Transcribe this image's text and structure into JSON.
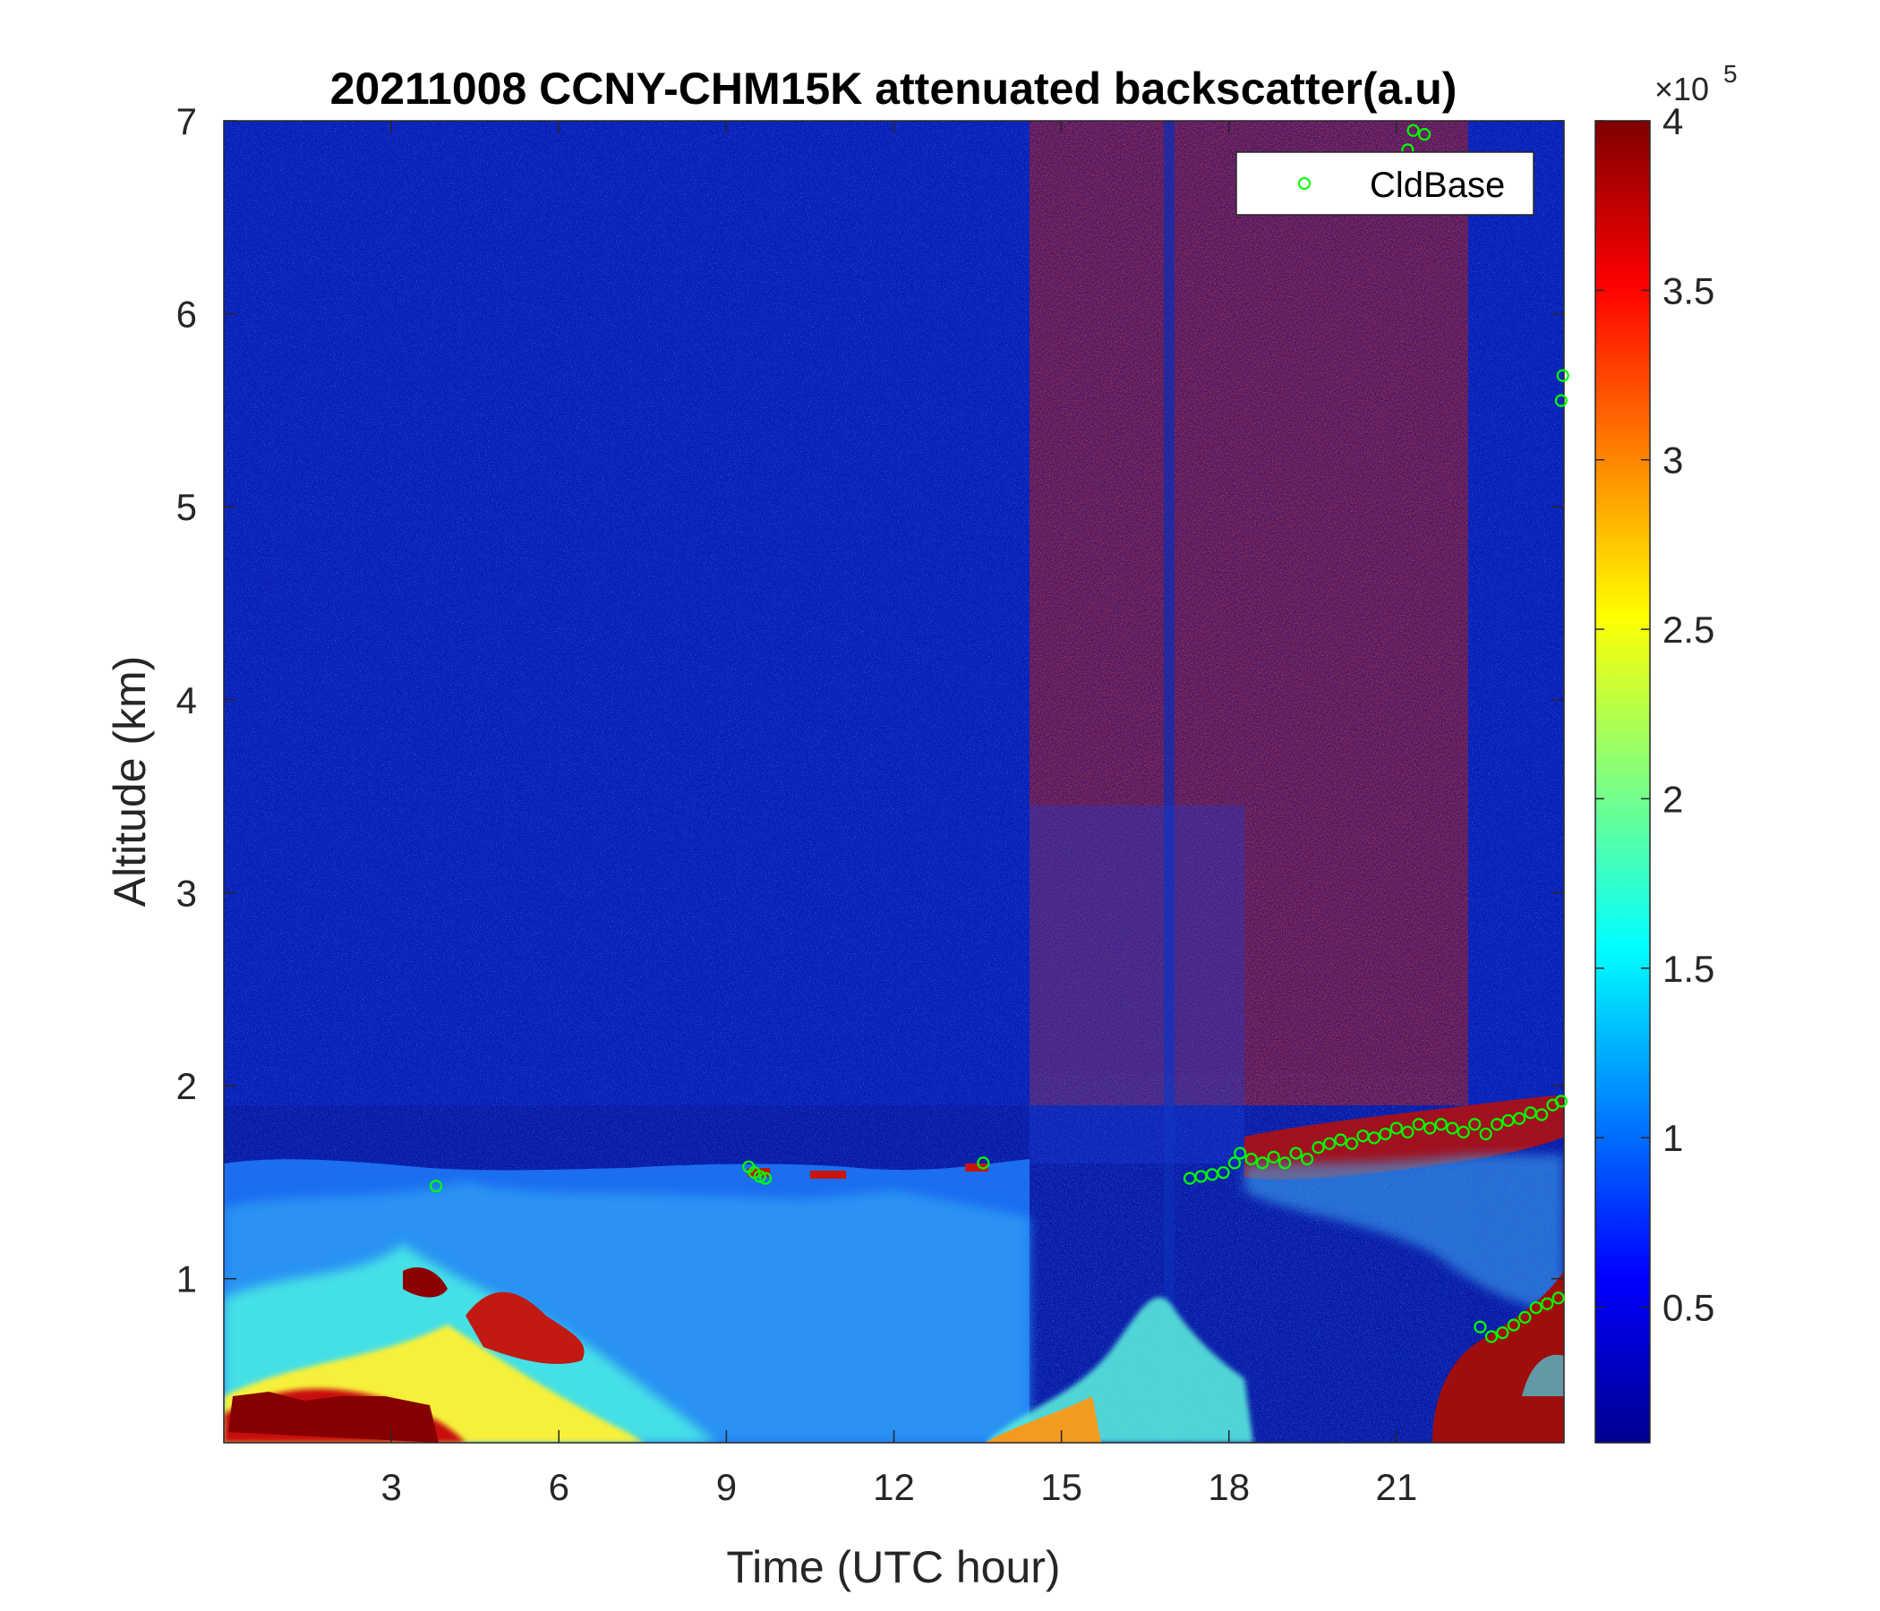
{
  "chart_data": {
    "type": "heatmap",
    "title": "20211008 CCNY-CHM15K attenuated backscatter(a.u)",
    "xlabel": "Time (UTC hour)",
    "ylabel": "Altitude (km)",
    "xlim": [
      0,
      24
    ],
    "ylim": [
      0.15,
      7
    ],
    "xticks": [
      3,
      6,
      9,
      12,
      15,
      18,
      21
    ],
    "yticks": [
      1,
      2,
      3,
      4,
      5,
      6,
      7
    ],
    "colormap": "jet",
    "colorbar": {
      "clim": [
        0.1,
        4
      ],
      "ticks": [
        0.5,
        1,
        1.5,
        2,
        2.5,
        3,
        3.5,
        4
      ],
      "multiplier": "×10",
      "exponent": "5"
    },
    "legend": {
      "position": "top-right",
      "entries": [
        "CldBase"
      ]
    },
    "series": [
      {
        "name": "CldBase",
        "marker": "circle",
        "color": "#00ff00",
        "x": [
          3.8,
          9.4,
          9.5,
          9.6,
          9.7,
          13.6,
          17.3,
          17.5,
          17.7,
          17.9,
          18.1,
          18.2,
          18.4,
          18.6,
          18.8,
          19.0,
          19.2,
          19.4,
          19.6,
          19.8,
          20.0,
          20.2,
          20.4,
          20.6,
          20.8,
          21.0,
          21.2,
          21.4,
          21.6,
          21.8,
          22.0,
          22.2,
          22.4,
          22.6,
          22.8,
          23.0,
          23.2,
          23.4,
          23.6,
          23.8,
          23.95,
          22.5,
          22.7,
          22.9,
          23.1,
          23.3,
          23.5,
          23.7,
          23.9,
          21.2,
          21.3,
          21.5,
          23.95,
          23.98
        ],
        "y": [
          1.48,
          1.58,
          1.55,
          1.53,
          1.52,
          1.6,
          1.52,
          1.53,
          1.54,
          1.55,
          1.6,
          1.65,
          1.62,
          1.6,
          1.63,
          1.6,
          1.65,
          1.62,
          1.68,
          1.7,
          1.72,
          1.7,
          1.74,
          1.73,
          1.75,
          1.78,
          1.76,
          1.8,
          1.78,
          1.8,
          1.78,
          1.76,
          1.8,
          1.75,
          1.8,
          1.82,
          1.83,
          1.86,
          1.85,
          1.9,
          1.92,
          0.75,
          0.7,
          0.72,
          0.76,
          0.8,
          0.85,
          0.87,
          0.9,
          6.85,
          6.95,
          6.93,
          5.55,
          5.68
        ]
      }
    ]
  }
}
